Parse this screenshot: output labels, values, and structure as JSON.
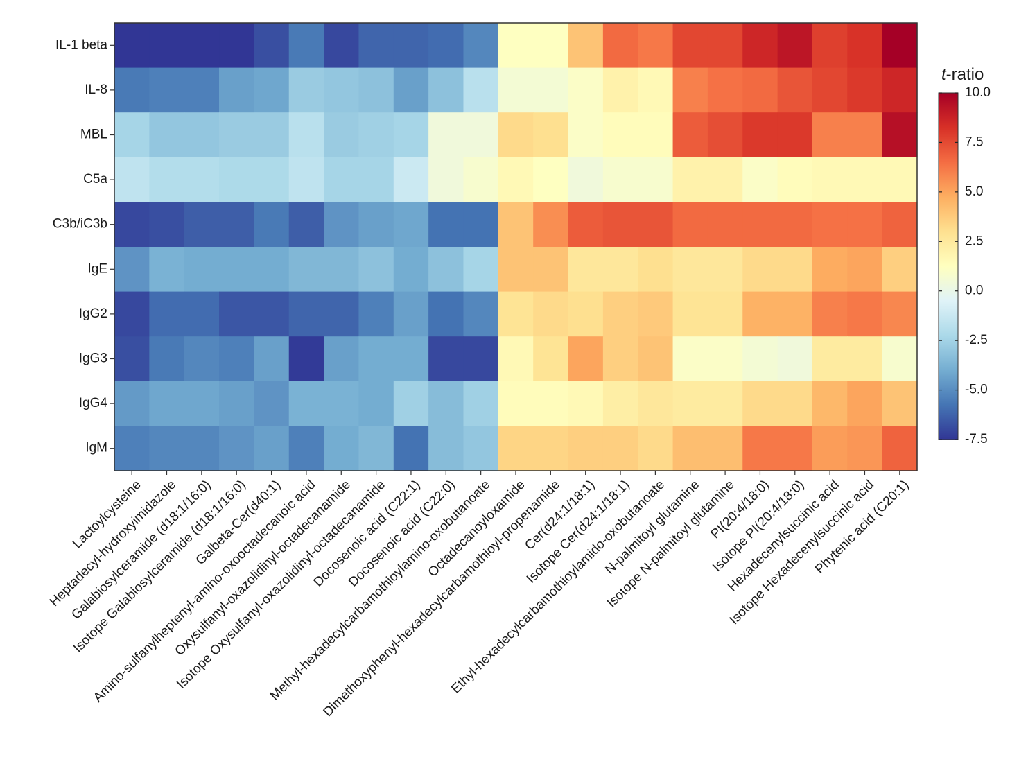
{
  "chart_data": {
    "type": "heatmap",
    "rows": [
      "IL-1 beta",
      "IL-8",
      "MBL",
      "C5a",
      "C3b/iC3b",
      "IgE",
      "IgG2",
      "IgG3",
      "IgG4",
      "IgM"
    ],
    "columns": [
      "Lactoylcysteine",
      "Heptadecyl-hydroxyimidazole",
      "Galabiosylceramide (d18:1/16:0)",
      "Isotope Galabiosylceramide (d18:1/16:0)",
      "Galbeta-Cer(d40:1)",
      "Amino-sulfanylheptenyl-amino-oxooctadecanoic acid",
      "Oxysulfanyl-oxazolidinyl-octadecanamide",
      "Isotope Oxysulfanyl-oxazolidinyl-octadecanamide",
      "Docosenoic acid (C22:1)",
      "Docosenoic acid (C22:0)",
      "Methyl-hexadecylcarbamothioylamino-oxobutanoate",
      "Octadecanoyloxamide",
      "Dimethoxyphenyl-hexadecylcarbamothioyl-propenamide",
      "Cer(d24:1/18:1)",
      "Isotope Cer(d24:1/18:1)",
      "Ethyl-hexadecylcarbamothioylamido-oxobutanoate",
      "N-palmitoyl glutamine",
      "Isotope N-palmitoyl glutamine",
      "PI(20:4/18:0)",
      "Isotope PI(20:4/18:0)",
      "Hexadecenylsuccinic acid",
      "Isotope Hexadecenylsuccinic acid",
      "Phytenic acid (C20:1)"
    ],
    "values": [
      [
        -7.8,
        -7.8,
        -7.6,
        -7.6,
        -6.8,
        -5.6,
        -7.0,
        -6.2,
        -6.2,
        -6.0,
        -5.2,
        1.2,
        1.2,
        4.0,
        6.6,
        6.2,
        7.6,
        7.6,
        8.6,
        9.2,
        7.8,
        8.2,
        10.0
      ],
      [
        -5.6,
        -5.4,
        -5.4,
        -4.4,
        -4.2,
        -2.8,
        -3.0,
        -3.2,
        -4.4,
        -3.2,
        -1.8,
        0.6,
        0.6,
        1.0,
        2.0,
        1.6,
        6.0,
        6.4,
        6.6,
        7.2,
        7.6,
        8.0,
        8.6
      ],
      [
        -2.4,
        -3.0,
        -3.0,
        -2.8,
        -2.8,
        -1.8,
        -2.8,
        -2.6,
        -2.4,
        0.4,
        0.4,
        3.2,
        3.0,
        1.0,
        1.4,
        1.4,
        7.0,
        7.4,
        8.0,
        8.0,
        6.0,
        6.0,
        9.4
      ],
      [
        -1.6,
        -2.0,
        -2.0,
        -2.2,
        -2.2,
        -1.6,
        -2.4,
        -2.4,
        -1.2,
        0.4,
        0.8,
        1.6,
        1.2,
        0.4,
        0.8,
        0.8,
        2.0,
        2.0,
        1.0,
        1.4,
        1.6,
        1.6,
        1.6
      ],
      [
        -7.0,
        -6.8,
        -6.4,
        -6.4,
        -5.6,
        -6.4,
        -4.8,
        -4.4,
        -4.2,
        -5.8,
        -5.8,
        4.0,
        5.6,
        7.0,
        7.2,
        7.2,
        6.6,
        6.6,
        6.6,
        6.6,
        6.4,
        6.4,
        6.8
      ],
      [
        -4.8,
        -3.8,
        -4.0,
        -4.0,
        -4.0,
        -3.6,
        -3.6,
        -3.2,
        -4.0,
        -3.2,
        -2.4,
        4.0,
        4.0,
        2.6,
        2.6,
        3.0,
        2.6,
        2.6,
        3.2,
        3.2,
        4.8,
        5.0,
        3.6
      ],
      [
        -7.0,
        -6.0,
        -6.0,
        -6.6,
        -6.6,
        -6.2,
        -6.2,
        -5.4,
        -4.4,
        -5.8,
        -5.2,
        2.8,
        3.2,
        3.0,
        3.6,
        3.8,
        2.8,
        2.8,
        4.6,
        4.6,
        6.0,
        6.2,
        5.8
      ],
      [
        -6.8,
        -5.6,
        -5.2,
        -5.4,
        -4.4,
        -7.4,
        -4.4,
        -4.0,
        -4.0,
        -7.0,
        -7.0,
        1.6,
        2.8,
        5.0,
        3.6,
        4.0,
        1.0,
        1.0,
        0.6,
        0.4,
        2.4,
        2.4,
        0.8
      ],
      [
        -4.6,
        -4.2,
        -4.2,
        -4.4,
        -4.8,
        -3.8,
        -3.8,
        -4.0,
        -2.6,
        -3.4,
        -2.6,
        1.4,
        1.4,
        1.6,
        2.2,
        2.6,
        2.4,
        2.4,
        3.2,
        3.2,
        4.4,
        5.0,
        4.0
      ],
      [
        -5.4,
        -5.2,
        -5.2,
        -4.8,
        -4.4,
        -5.4,
        -4.0,
        -3.6,
        -5.8,
        -3.4,
        -3.0,
        3.4,
        3.4,
        3.6,
        3.6,
        3.2,
        4.2,
        4.2,
        6.2,
        6.2,
        5.2,
        5.4,
        6.8
      ]
    ],
    "colorbar": {
      "title_italic": "t",
      "title_rest": "-ratio",
      "range": [
        -7.5,
        10.0
      ],
      "ticks": [
        10.0,
        7.5,
        5.0,
        2.5,
        0.0,
        -2.5,
        -5.0,
        -7.5
      ],
      "tick_labels": [
        "10.0",
        "7.5",
        "5.0",
        "2.5",
        "0.0",
        "-2.5",
        "-5.0",
        "-7.5"
      ]
    },
    "colormap": [
      "#313695",
      "#4575b4",
      "#74add1",
      "#abd9e9",
      "#e0f3f8",
      "#ffffbf",
      "#fee090",
      "#fdae61",
      "#f46d43",
      "#d73027",
      "#a50026"
    ],
    "border_color": "#333333"
  }
}
